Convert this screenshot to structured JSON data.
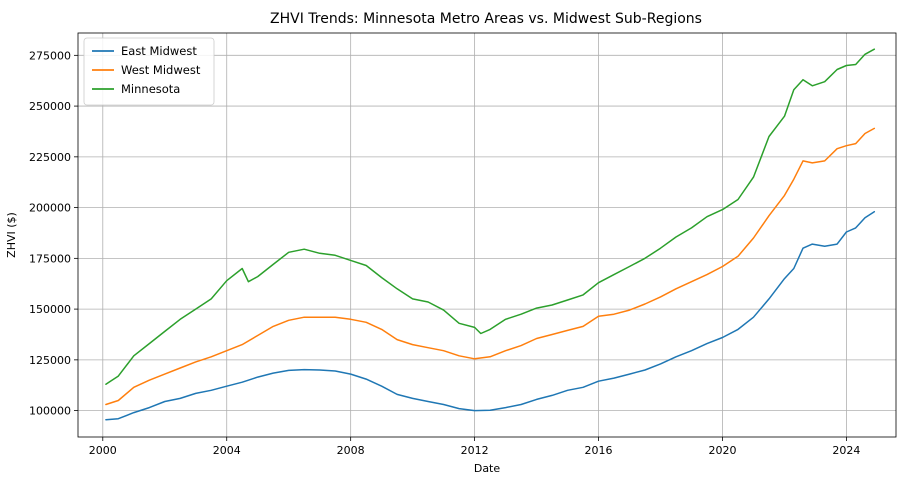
{
  "chart_data": {
    "type": "line",
    "title": "ZHVI Trends: Minnesota Metro Areas vs. Midwest Sub-Regions",
    "xlabel": "Date",
    "ylabel": "ZHVI ($)",
    "xlim": [
      1999.2,
      2025.6
    ],
    "ylim": [
      87000,
      286000
    ],
    "xticks": [
      2000,
      2004,
      2008,
      2012,
      2016,
      2020,
      2024
    ],
    "xtick_labels": [
      "2000",
      "2004",
      "2008",
      "2012",
      "2016",
      "2020",
      "2024"
    ],
    "yticks": [
      100000,
      125000,
      150000,
      175000,
      200000,
      225000,
      250000,
      275000
    ],
    "ytick_labels": [
      "100000",
      "125000",
      "150000",
      "175000",
      "200000",
      "225000",
      "250000",
      "275000"
    ],
    "grid": true,
    "legend_position": "top-left",
    "series": [
      {
        "name": "East Midwest",
        "color": "#1f77b4",
        "points": [
          [
            2000.1,
            95500
          ],
          [
            2000.5,
            96000
          ],
          [
            2001.0,
            99000
          ],
          [
            2001.5,
            101500
          ],
          [
            2002.0,
            104500
          ],
          [
            2002.5,
            106000
          ],
          [
            2003.0,
            108500
          ],
          [
            2003.5,
            110000
          ],
          [
            2004.0,
            112000
          ],
          [
            2004.5,
            114000
          ],
          [
            2005.0,
            116500
          ],
          [
            2005.5,
            118500
          ],
          [
            2006.0,
            119800
          ],
          [
            2006.5,
            120200
          ],
          [
            2007.0,
            120000
          ],
          [
            2007.5,
            119500
          ],
          [
            2008.0,
            118000
          ],
          [
            2008.5,
            115500
          ],
          [
            2009.0,
            112000
          ],
          [
            2009.5,
            108000
          ],
          [
            2010.0,
            106000
          ],
          [
            2010.5,
            104500
          ],
          [
            2011.0,
            103000
          ],
          [
            2011.5,
            101000
          ],
          [
            2012.0,
            100000
          ],
          [
            2012.5,
            100200
          ],
          [
            2013.0,
            101500
          ],
          [
            2013.5,
            103000
          ],
          [
            2014.0,
            105500
          ],
          [
            2014.5,
            107500
          ],
          [
            2015.0,
            110000
          ],
          [
            2015.5,
            111500
          ],
          [
            2016.0,
            114500
          ],
          [
            2016.5,
            116000
          ],
          [
            2017.0,
            118000
          ],
          [
            2017.5,
            120000
          ],
          [
            2018.0,
            123000
          ],
          [
            2018.5,
            126500
          ],
          [
            2019.0,
            129500
          ],
          [
            2019.5,
            133000
          ],
          [
            2020.0,
            136000
          ],
          [
            2020.5,
            140000
          ],
          [
            2021.0,
            146000
          ],
          [
            2021.5,
            155000
          ],
          [
            2022.0,
            165000
          ],
          [
            2022.3,
            170000
          ],
          [
            2022.6,
            180000
          ],
          [
            2022.9,
            182000
          ],
          [
            2023.3,
            181000
          ],
          [
            2023.7,
            182000
          ],
          [
            2024.0,
            188000
          ],
          [
            2024.3,
            190000
          ],
          [
            2024.6,
            195000
          ],
          [
            2024.9,
            198000
          ]
        ]
      },
      {
        "name": "West Midwest",
        "color": "#ff7f0e",
        "points": [
          [
            2000.1,
            103000
          ],
          [
            2000.5,
            105000
          ],
          [
            2001.0,
            111500
          ],
          [
            2001.5,
            115000
          ],
          [
            2002.0,
            118000
          ],
          [
            2002.5,
            121000
          ],
          [
            2003.0,
            124000
          ],
          [
            2003.5,
            126500
          ],
          [
            2004.0,
            129500
          ],
          [
            2004.5,
            132500
          ],
          [
            2005.0,
            137000
          ],
          [
            2005.5,
            141500
          ],
          [
            2006.0,
            144500
          ],
          [
            2006.5,
            146000
          ],
          [
            2007.0,
            146000
          ],
          [
            2007.5,
            146000
          ],
          [
            2008.0,
            145000
          ],
          [
            2008.5,
            143500
          ],
          [
            2009.0,
            140000
          ],
          [
            2009.5,
            135000
          ],
          [
            2010.0,
            132500
          ],
          [
            2010.5,
            131000
          ],
          [
            2011.0,
            129500
          ],
          [
            2011.5,
            127000
          ],
          [
            2012.0,
            125500
          ],
          [
            2012.5,
            126500
          ],
          [
            2013.0,
            129500
          ],
          [
            2013.5,
            132000
          ],
          [
            2014.0,
            135500
          ],
          [
            2014.5,
            137500
          ],
          [
            2015.0,
            139500
          ],
          [
            2015.5,
            141500
          ],
          [
            2016.0,
            146500
          ],
          [
            2016.5,
            147500
          ],
          [
            2017.0,
            149500
          ],
          [
            2017.5,
            152500
          ],
          [
            2018.0,
            156000
          ],
          [
            2018.5,
            160000
          ],
          [
            2019.0,
            163500
          ],
          [
            2019.5,
            167000
          ],
          [
            2020.0,
            171000
          ],
          [
            2020.5,
            176000
          ],
          [
            2021.0,
            185000
          ],
          [
            2021.5,
            196000
          ],
          [
            2022.0,
            206000
          ],
          [
            2022.3,
            214000
          ],
          [
            2022.6,
            223000
          ],
          [
            2022.9,
            222000
          ],
          [
            2023.3,
            223000
          ],
          [
            2023.7,
            229000
          ],
          [
            2024.0,
            230500
          ],
          [
            2024.3,
            231500
          ],
          [
            2024.6,
            236500
          ],
          [
            2024.9,
            239000
          ]
        ]
      },
      {
        "name": "Minnesota",
        "color": "#2ca02c",
        "points": [
          [
            2000.1,
            113000
          ],
          [
            2000.5,
            117000
          ],
          [
            2001.0,
            127000
          ],
          [
            2001.5,
            133000
          ],
          [
            2002.0,
            139000
          ],
          [
            2002.5,
            145000
          ],
          [
            2003.0,
            150000
          ],
          [
            2003.5,
            155000
          ],
          [
            2004.0,
            164000
          ],
          [
            2004.5,
            170000
          ],
          [
            2004.7,
            163500
          ],
          [
            2005.0,
            166000
          ],
          [
            2005.5,
            172000
          ],
          [
            2006.0,
            178000
          ],
          [
            2006.5,
            179500
          ],
          [
            2007.0,
            177500
          ],
          [
            2007.5,
            176500
          ],
          [
            2008.0,
            174000
          ],
          [
            2008.5,
            171500
          ],
          [
            2009.0,
            165500
          ],
          [
            2009.5,
            160000
          ],
          [
            2010.0,
            155000
          ],
          [
            2010.5,
            153500
          ],
          [
            2011.0,
            149500
          ],
          [
            2011.5,
            143000
          ],
          [
            2012.0,
            141000
          ],
          [
            2012.2,
            138000
          ],
          [
            2012.5,
            140000
          ],
          [
            2013.0,
            145000
          ],
          [
            2013.5,
            147500
          ],
          [
            2014.0,
            150500
          ],
          [
            2014.5,
            152000
          ],
          [
            2015.0,
            154500
          ],
          [
            2015.5,
            157000
          ],
          [
            2016.0,
            163000
          ],
          [
            2016.5,
            167000
          ],
          [
            2017.0,
            171000
          ],
          [
            2017.5,
            175000
          ],
          [
            2018.0,
            180000
          ],
          [
            2018.5,
            185500
          ],
          [
            2019.0,
            190000
          ],
          [
            2019.5,
            195500
          ],
          [
            2020.0,
            199000
          ],
          [
            2020.5,
            204000
          ],
          [
            2021.0,
            215000
          ],
          [
            2021.5,
            235000
          ],
          [
            2022.0,
            245000
          ],
          [
            2022.3,
            258000
          ],
          [
            2022.6,
            263000
          ],
          [
            2022.9,
            260000
          ],
          [
            2023.3,
            262000
          ],
          [
            2023.7,
            268000
          ],
          [
            2024.0,
            270000
          ],
          [
            2024.3,
            270500
          ],
          [
            2024.6,
            275500
          ],
          [
            2024.9,
            278000
          ]
        ]
      }
    ]
  }
}
